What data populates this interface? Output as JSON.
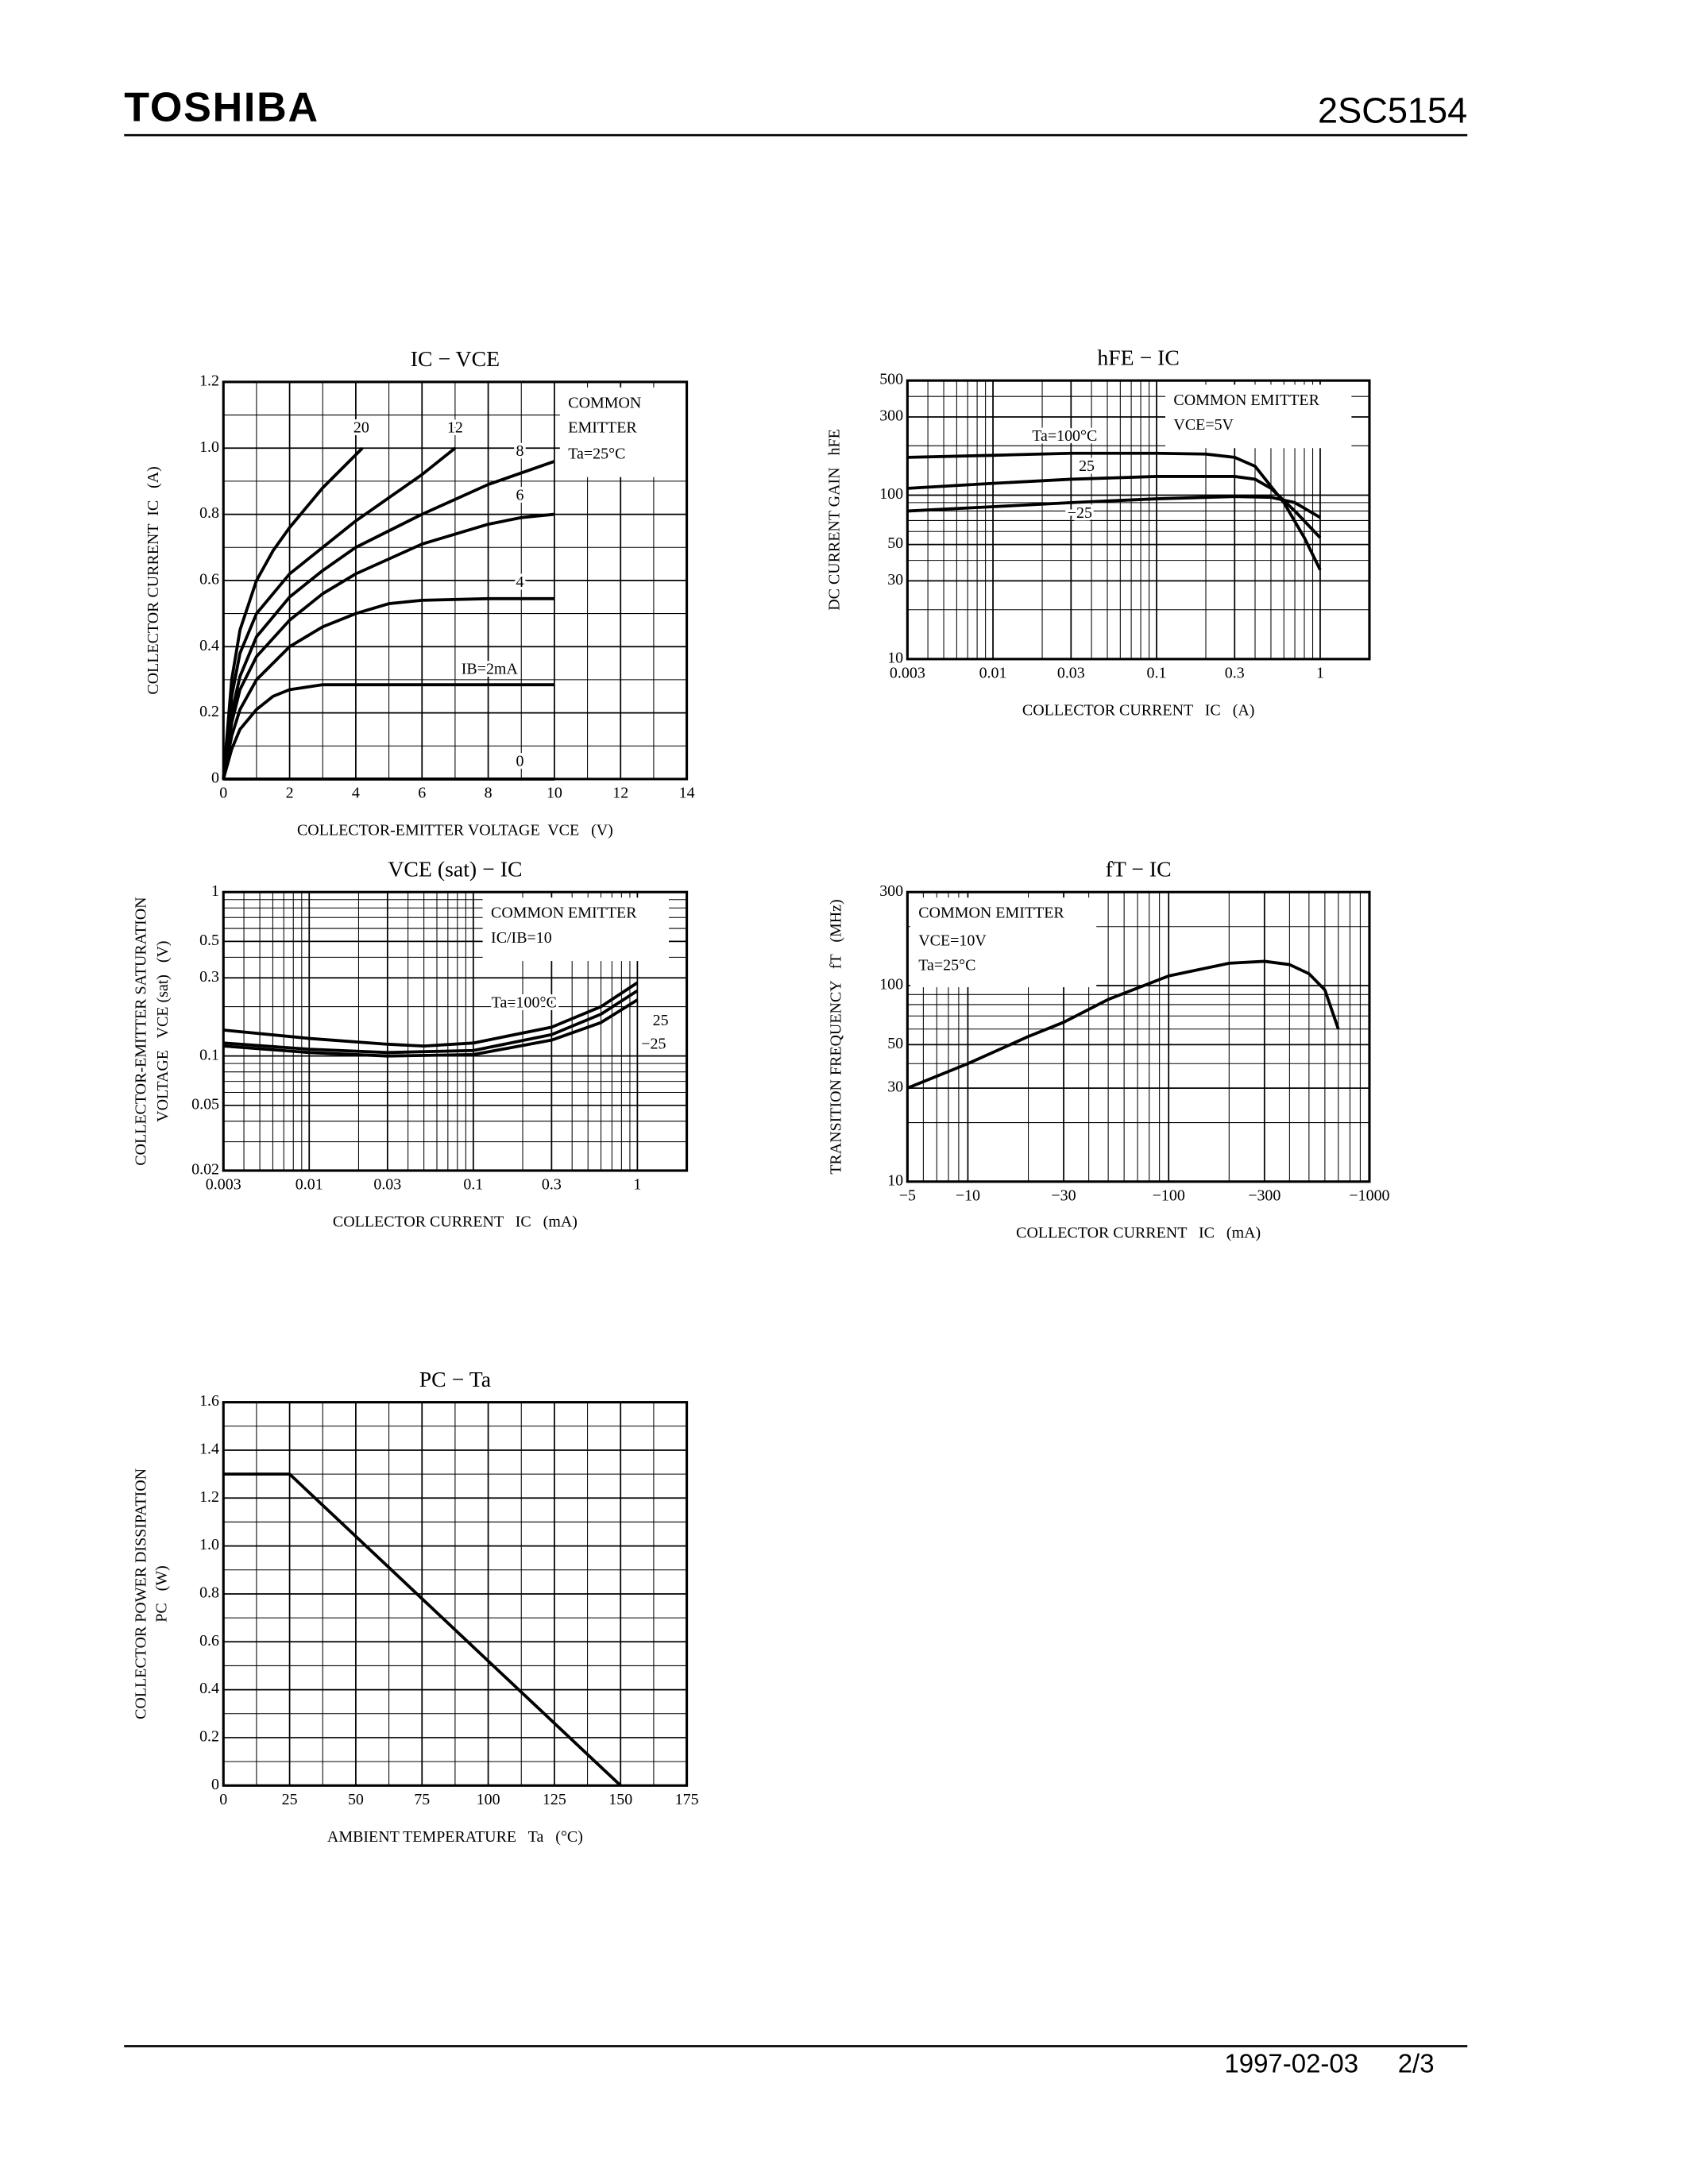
{
  "header": {
    "brand": "TOSHIBA",
    "part": "2SC5154"
  },
  "footer": {
    "date": "1997-02-03",
    "page": "2/3"
  },
  "chart_data": [
    {
      "type": "line",
      "title": "IC − VCE",
      "x_label": "COLLECTOR-EMITTER VOLTAGE  VCE   (V)",
      "y_label": [
        "COLLECTOR CURRENT  IC   (A)"
      ],
      "annotations": [
        "COMMON",
        "EMITTER",
        "Ta=25°C"
      ],
      "xlim": [
        0,
        14
      ],
      "xticks": [
        0,
        2,
        4,
        6,
        8,
        10,
        12,
        14
      ],
      "ylim": [
        0,
        1.2
      ],
      "yticks": [
        0,
        0.2,
        0.4,
        0.6,
        0.8,
        {
          "value": 1,
          "label": "1.0"
        },
        1.2
      ],
      "grid": true,
      "series": [
        {
          "name": "20",
          "color": "#000",
          "x": [
            0,
            0.25,
            0.5,
            1,
            1.5,
            2,
            3,
            4.2
          ],
          "values": [
            0,
            0.3,
            0.45,
            0.6,
            0.69,
            0.76,
            0.88,
            1.0
          ]
        },
        {
          "name": "12",
          "color": "#000",
          "x": [
            0,
            0.25,
            0.5,
            1,
            2,
            3,
            4,
            5,
            6,
            7
          ],
          "values": [
            0,
            0.25,
            0.38,
            0.5,
            0.62,
            0.7,
            0.78,
            0.85,
            0.92,
            1.0
          ]
        },
        {
          "name": "8",
          "color": "#000",
          "x": [
            0,
            0.25,
            0.5,
            1,
            2,
            3,
            4,
            6,
            8,
            10
          ],
          "values": [
            0,
            0.2,
            0.31,
            0.43,
            0.55,
            0.63,
            0.7,
            0.8,
            0.89,
            0.96
          ]
        },
        {
          "name": "6",
          "color": "#000",
          "x": [
            0,
            0.25,
            0.5,
            1,
            2,
            3,
            4,
            6,
            8,
            9,
            10
          ],
          "values": [
            0,
            0.17,
            0.27,
            0.37,
            0.48,
            0.56,
            0.62,
            0.71,
            0.77,
            0.79,
            0.8
          ]
        },
        {
          "name": "4",
          "color": "#000",
          "x": [
            0,
            0.25,
            0.5,
            1,
            2,
            3,
            4,
            5,
            6,
            8,
            10
          ],
          "values": [
            0,
            0.13,
            0.21,
            0.3,
            0.4,
            0.46,
            0.5,
            0.53,
            0.54,
            0.545,
            0.545
          ]
        },
        {
          "name": "IB=2mA",
          "color": "#000",
          "x": [
            0,
            0.25,
            0.5,
            1,
            1.5,
            2,
            3,
            10
          ],
          "values": [
            0,
            0.09,
            0.15,
            0.21,
            0.25,
            0.27,
            0.285,
            0.285
          ]
        },
        {
          "name": "0",
          "color": "#000",
          "x": [
            0,
            10
          ],
          "values": [
            0,
            0
          ]
        }
      ]
    },
    {
      "type": "line",
      "title": "hFE − IC",
      "x_label": "COLLECTOR CURRENT   IC   (A)",
      "y_label": [
        "DC CURRENT GAIN   hFE"
      ],
      "annotations": [
        "COMMON EMITTER",
        "VCE=5V"
      ],
      "xscale": "log",
      "xlim": [
        0.003,
        2
      ],
      "xticks": [
        0.003,
        0.01,
        0.03,
        0.1,
        0.3,
        1
      ],
      "yscale": "log",
      "ylim": [
        10,
        500
      ],
      "yticks": [
        10,
        30,
        50,
        100,
        300,
        500
      ],
      "grid": true,
      "series": [
        {
          "name": "Ta=100°C",
          "color": "#000",
          "x": [
            0.003,
            0.01,
            0.03,
            0.1,
            0.2,
            0.3,
            0.4,
            0.6,
            0.8,
            1
          ],
          "values": [
            170,
            175,
            180,
            180,
            178,
            170,
            150,
            90,
            55,
            35
          ]
        },
        {
          "name": "25",
          "color": "#000",
          "x": [
            0.003,
            0.01,
            0.03,
            0.1,
            0.3,
            0.4,
            0.5,
            0.7,
            1
          ],
          "values": [
            110,
            118,
            125,
            130,
            130,
            125,
            110,
            80,
            55
          ]
        },
        {
          "name": "−25",
          "color": "#000",
          "x": [
            0.003,
            0.01,
            0.03,
            0.1,
            0.3,
            0.5,
            0.7,
            1
          ],
          "values": [
            80,
            85,
            90,
            95,
            98,
            97,
            90,
            73
          ]
        }
      ]
    },
    {
      "type": "line",
      "title": "VCE (sat) − IC",
      "x_label": "COLLECTOR CURRENT   IC   (mA)",
      "y_label": [
        "COLLECTOR-EMITTER SATURATION",
        "VOLTAGE   VCE (sat)   (V)"
      ],
      "annotations": [
        "COMMON EMITTER",
        "IC/IB=10"
      ],
      "xscale": "log",
      "xlim": [
        0.003,
        2
      ],
      "xticks": [
        0.003,
        0.01,
        0.03,
        0.1,
        0.3,
        1
      ],
      "yscale": "log",
      "ylim": [
        0.02,
        1
      ],
      "yticks": [
        0.02,
        0.05,
        0.1,
        0.3,
        0.5,
        1
      ],
      "grid": true,
      "series": [
        {
          "name": "Ta=100°C",
          "color": "#000",
          "x": [
            0.003,
            0.01,
            0.03,
            0.05,
            0.1,
            0.3,
            0.6,
            1
          ],
          "values": [
            0.144,
            0.128,
            0.118,
            0.115,
            0.12,
            0.15,
            0.2,
            0.28
          ]
        },
        {
          "name": "25",
          "color": "#000",
          "x": [
            0.003,
            0.01,
            0.03,
            0.1,
            0.3,
            0.6,
            1
          ],
          "values": [
            0.12,
            0.11,
            0.105,
            0.108,
            0.135,
            0.18,
            0.25
          ]
        },
        {
          "name": "−25",
          "color": "#000",
          "x": [
            0.003,
            0.01,
            0.03,
            0.1,
            0.3,
            0.6,
            1
          ],
          "values": [
            0.115,
            0.105,
            0.1,
            0.102,
            0.125,
            0.16,
            0.22
          ]
        }
      ]
    },
    {
      "type": "line",
      "title": "fT − IC",
      "x_label": "COLLECTOR CURRENT   IC   (mA)",
      "y_label": [
        "TRANSITION FREQUENCY   fT   (MHz)"
      ],
      "annotations": [
        "COMMON EMITTER",
        "VCE=10V",
        "Ta=25°C"
      ],
      "xscale": "log",
      "xlim": [
        -5,
        -1000
      ],
      "xticks": [
        {
          "value": -5,
          "label": "−5"
        },
        {
          "value": -10,
          "label": "−10"
        },
        {
          "value": -30,
          "label": "−30"
        },
        {
          "value": -100,
          "label": "−100"
        },
        {
          "value": -300,
          "label": "−300"
        },
        {
          "value": -1000,
          "label": "−1000"
        }
      ],
      "yscale": "log",
      "ylim": [
        10,
        300
      ],
      "yticks": [
        10,
        30,
        50,
        100,
        300
      ],
      "grid": true,
      "series": [
        {
          "name": "fT",
          "color": "#000",
          "x": [
            -5,
            -10,
            -20,
            -30,
            -50,
            -100,
            -200,
            -300,
            -400,
            -500,
            -600,
            -700
          ],
          "values": [
            30,
            40,
            55,
            65,
            85,
            112,
            130,
            133,
            128,
            115,
            95,
            60
          ]
        }
      ]
    },
    {
      "type": "line",
      "title": "PC − Ta",
      "x_label": "AMBIENT TEMPERATURE   Ta   (°C)",
      "y_label": [
        "COLLECTOR POWER DISSIPATION",
        "PC   (W)"
      ],
      "annotations": [],
      "xlim": [
        0,
        175
      ],
      "xticks": [
        0,
        25,
        50,
        75,
        100,
        125,
        150,
        175
      ],
      "ylim": [
        0,
        1.6
      ],
      "yticks": [
        0,
        0.2,
        0.4,
        0.6,
        0.8,
        {
          "value": 1,
          "label": "1.0"
        },
        1.2,
        1.4,
        1.6
      ],
      "grid": true,
      "series": [
        {
          "name": "PC",
          "color": "#000",
          "x": [
            0,
            25,
            150
          ],
          "values": [
            1.3,
            1.3,
            0
          ]
        }
      ]
    }
  ]
}
